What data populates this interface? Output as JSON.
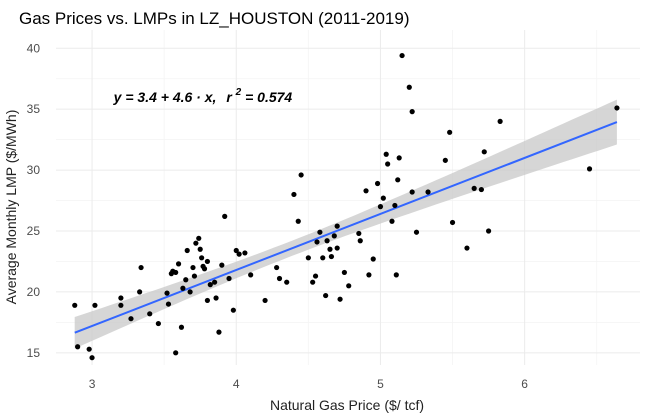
{
  "chart_data": {
    "type": "scatter",
    "title": "Gas Prices vs. LMPs in LZ_HOUSTON (2011-2019)",
    "xlabel": "Natural Gas Price ($/ tcf)",
    "ylabel": "Average Monthly LMP ($/MWh)",
    "xlim": [
      2.75,
      6.8
    ],
    "ylim": [
      14,
      41.5
    ],
    "x_ticks": [
      3,
      4,
      5,
      6
    ],
    "y_ticks": [
      15,
      20,
      25,
      30,
      35,
      40
    ],
    "grid": true,
    "equation_label": {
      "prefix": "y = 3.4 + 4.6 · x,",
      "r_sym": "r",
      "r_exp": "2",
      "suffix": " = 0.574",
      "data_x": 3.15,
      "data_y": 35.6
    },
    "fit": {
      "intercept": 3.4,
      "slope": 4.6,
      "color": "#3366ff"
    },
    "band_color": "#c8c8c8",
    "point_color": "#000000",
    "points": [
      [
        2.88,
        18.9
      ],
      [
        2.9,
        15.5
      ],
      [
        2.98,
        15.3
      ],
      [
        3.0,
        14.6
      ],
      [
        3.02,
        18.9
      ],
      [
        3.2,
        18.9
      ],
      [
        3.2,
        19.5
      ],
      [
        3.27,
        17.8
      ],
      [
        3.33,
        20.0
      ],
      [
        3.34,
        22.0
      ],
      [
        3.4,
        18.2
      ],
      [
        3.46,
        17.4
      ],
      [
        3.52,
        19.9
      ],
      [
        3.53,
        19.0
      ],
      [
        3.55,
        21.5
      ],
      [
        3.56,
        21.7
      ],
      [
        3.58,
        21.6
      ],
      [
        3.58,
        15.0
      ],
      [
        3.6,
        22.3
      ],
      [
        3.62,
        17.1
      ],
      [
        3.63,
        20.3
      ],
      [
        3.65,
        21.0
      ],
      [
        3.66,
        23.4
      ],
      [
        3.68,
        20.0
      ],
      [
        3.7,
        22.0
      ],
      [
        3.71,
        21.3
      ],
      [
        3.72,
        24.0
      ],
      [
        3.74,
        24.4
      ],
      [
        3.75,
        23.5
      ],
      [
        3.76,
        22.8
      ],
      [
        3.77,
        22.1
      ],
      [
        3.78,
        21.9
      ],
      [
        3.8,
        19.3
      ],
      [
        3.8,
        22.5
      ],
      [
        3.82,
        20.6
      ],
      [
        3.85,
        20.8
      ],
      [
        3.86,
        19.5
      ],
      [
        3.88,
        16.7
      ],
      [
        3.9,
        22.2
      ],
      [
        3.92,
        26.2
      ],
      [
        3.95,
        21.1
      ],
      [
        3.98,
        18.5
      ],
      [
        4.0,
        23.4
      ],
      [
        4.02,
        23.1
      ],
      [
        4.06,
        23.2
      ],
      [
        4.1,
        21.4
      ],
      [
        4.2,
        19.3
      ],
      [
        4.28,
        22.0
      ],
      [
        4.3,
        21.1
      ],
      [
        4.35,
        20.8
      ],
      [
        4.4,
        28.0
      ],
      [
        4.43,
        25.8
      ],
      [
        4.45,
        29.6
      ],
      [
        4.5,
        22.8
      ],
      [
        4.53,
        20.8
      ],
      [
        4.55,
        21.3
      ],
      [
        4.56,
        24.1
      ],
      [
        4.58,
        24.9
      ],
      [
        4.6,
        22.8
      ],
      [
        4.62,
        19.7
      ],
      [
        4.63,
        24.2
      ],
      [
        4.65,
        23.5
      ],
      [
        4.66,
        22.9
      ],
      [
        4.68,
        24.6
      ],
      [
        4.7,
        25.4
      ],
      [
        4.7,
        23.6
      ],
      [
        4.72,
        19.4
      ],
      [
        4.75,
        21.6
      ],
      [
        4.78,
        20.5
      ],
      [
        4.85,
        24.8
      ],
      [
        4.86,
        24.2
      ],
      [
        4.9,
        28.3
      ],
      [
        4.92,
        21.4
      ],
      [
        4.95,
        22.7
      ],
      [
        4.98,
        28.9
      ],
      [
        5.0,
        27.0
      ],
      [
        5.02,
        27.7
      ],
      [
        5.04,
        31.3
      ],
      [
        5.05,
        30.5
      ],
      [
        5.08,
        25.8
      ],
      [
        5.1,
        27.1
      ],
      [
        5.11,
        21.4
      ],
      [
        5.12,
        29.2
      ],
      [
        5.13,
        31.0
      ],
      [
        5.15,
        39.4
      ],
      [
        5.2,
        36.8
      ],
      [
        5.22,
        34.8
      ],
      [
        5.22,
        28.2
      ],
      [
        5.25,
        24.9
      ],
      [
        5.33,
        28.2
      ],
      [
        5.45,
        30.8
      ],
      [
        5.48,
        33.1
      ],
      [
        5.5,
        25.7
      ],
      [
        5.6,
        23.6
      ],
      [
        5.65,
        28.5
      ],
      [
        5.7,
        28.4
      ],
      [
        5.72,
        31.5
      ],
      [
        5.75,
        25.0
      ],
      [
        5.83,
        34.0
      ],
      [
        6.45,
        30.1
      ],
      [
        6.64,
        35.1
      ]
    ]
  }
}
